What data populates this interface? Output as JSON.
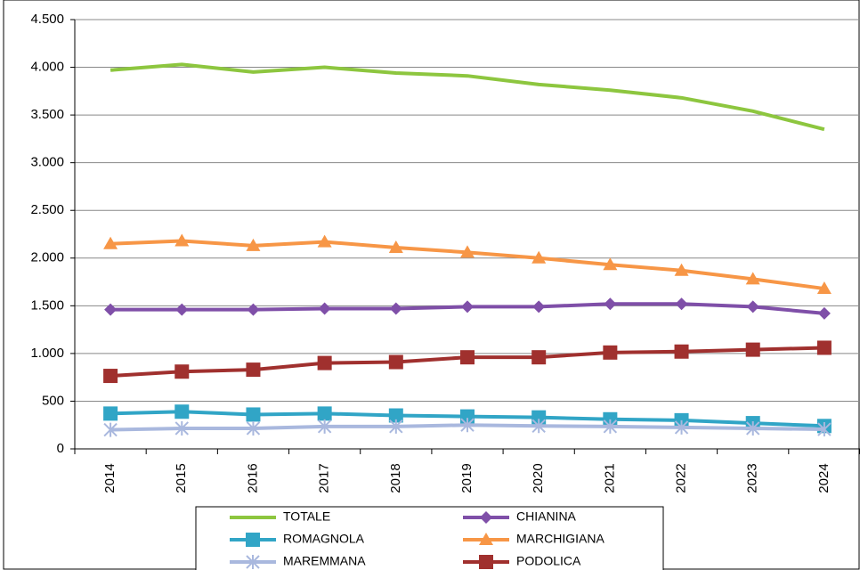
{
  "chart_data": {
    "type": "line",
    "categories": [
      "2014",
      "2015",
      "2016",
      "2017",
      "2018",
      "2019",
      "2020",
      "2021",
      "2022",
      "2023",
      "2024"
    ],
    "ylim": [
      0,
      4500
    ],
    "yticks": [
      0,
      500,
      {
        "value": 1000,
        "label": "1.000"
      },
      {
        "value": 1500,
        "label": "1.500"
      },
      {
        "value": 2000,
        "label": "2.000"
      },
      {
        "value": 2500,
        "label": "2.500"
      },
      {
        "value": 3000,
        "label": "3.000"
      },
      {
        "value": 3500,
        "label": "3.500"
      },
      {
        "value": 4000,
        "label": "4.000"
      },
      {
        "value": 4500,
        "label": "4.500"
      }
    ],
    "grid": true,
    "series": [
      {
        "name": "TOTALE",
        "color": "#8dc63f",
        "marker": "none",
        "values": [
          3970,
          4030,
          3950,
          4000,
          3940,
          3910,
          3820,
          3760,
          3680,
          3540,
          3350
        ]
      },
      {
        "name": "CHIANINA",
        "color": "#7f4fa8",
        "marker": "diamond",
        "values": [
          1460,
          1460,
          1460,
          1470,
          1470,
          1490,
          1490,
          1520,
          1520,
          1490,
          1420
        ]
      },
      {
        "name": "ROMAGNOLA",
        "color": "#31a5c6",
        "marker": "square",
        "values": [
          370,
          390,
          360,
          370,
          350,
          340,
          330,
          310,
          300,
          270,
          240
        ]
      },
      {
        "name": "MARCHIGIANA",
        "color": "#f79646",
        "marker": "triangle",
        "values": [
          2150,
          2180,
          2130,
          2170,
          2110,
          2060,
          2000,
          1930,
          1870,
          1780,
          1680
        ]
      },
      {
        "name": "MAREMMANA",
        "color": "#a9b8de",
        "marker": "cross",
        "values": [
          200,
          215,
          215,
          235,
          235,
          250,
          240,
          235,
          225,
          215,
          205
        ]
      },
      {
        "name": "PODOLICA",
        "color": "#a0302e",
        "marker": "square",
        "values": [
          765,
          810,
          830,
          900,
          910,
          960,
          960,
          1010,
          1020,
          1040,
          1060
        ]
      }
    ]
  }
}
